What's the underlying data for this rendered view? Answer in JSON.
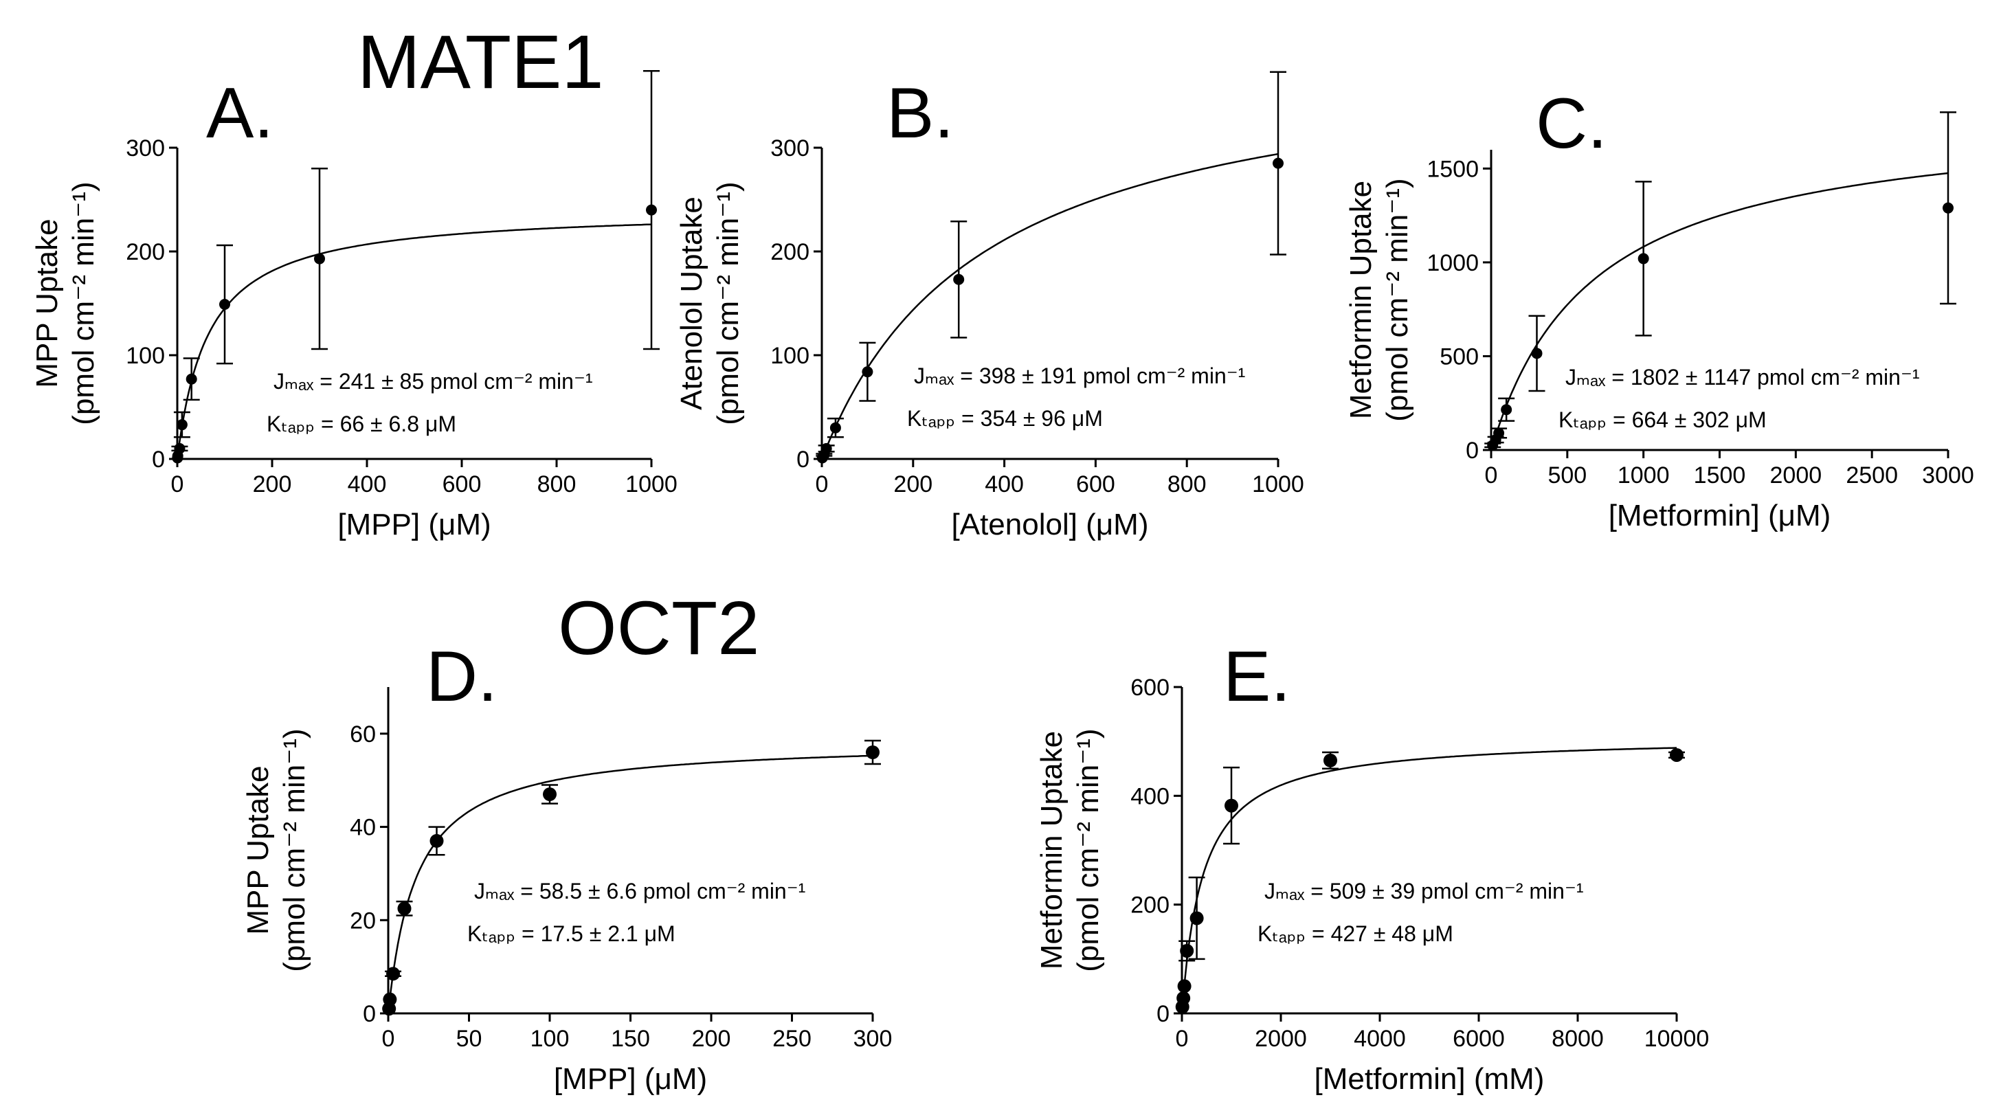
{
  "headings": {
    "top": "MATE1",
    "bottom": "OCT2"
  },
  "chart_data": [
    {
      "id": "A",
      "type": "scatter",
      "panel_label": "A.",
      "xlabel": "[MPP] (μM)",
      "ylabel_line1": "MPP Uptake",
      "ylabel_line2": "(pmol cm⁻² min⁻¹)",
      "xlim": [
        0,
        1000
      ],
      "ylim": [
        0,
        300
      ],
      "xticks": [
        0,
        200,
        400,
        600,
        800,
        1000
      ],
      "yticks": [
        0,
        100,
        200,
        300
      ],
      "grid": false,
      "points": [
        {
          "x": 0.5,
          "y": 1,
          "err": 0
        },
        {
          "x": 1,
          "y": 3,
          "err": 0
        },
        {
          "x": 5,
          "y": 10,
          "err": 2
        },
        {
          "x": 10,
          "y": 33,
          "err": 12
        },
        {
          "x": 30,
          "y": 77,
          "err": 20
        },
        {
          "x": 100,
          "y": 149,
          "err": 57
        },
        {
          "x": 300,
          "y": 193,
          "err": 87
        },
        {
          "x": 1000,
          "y": 240,
          "err": 134
        }
      ],
      "fit": {
        "vmax": 241,
        "km": 66
      },
      "annotation_line1": "Jₘₐₓ = 241 ± 85 pmol cm⁻² min⁻¹",
      "annotation_line2": "Kₜₐₚₚ = 66 ± 6.8 μM"
    },
    {
      "id": "B",
      "type": "scatter",
      "panel_label": "B.",
      "xlabel": "[Atenolol] (μM)",
      "ylabel_line1": "Atenolol Uptake",
      "ylabel_line2": "(pmol cm⁻² min⁻¹)",
      "xlim": [
        0,
        1000
      ],
      "ylim": [
        0,
        300
      ],
      "xticks": [
        0,
        200,
        400,
        600,
        800,
        1000
      ],
      "yticks": [
        0,
        100,
        200,
        300
      ],
      "grid": false,
      "points": [
        {
          "x": 1,
          "y": 1,
          "err": 0
        },
        {
          "x": 5,
          "y": 4,
          "err": 1
        },
        {
          "x": 10,
          "y": 10,
          "err": 3
        },
        {
          "x": 30,
          "y": 30,
          "err": 9
        },
        {
          "x": 100,
          "y": 84,
          "err": 28
        },
        {
          "x": 300,
          "y": 173,
          "err": 56
        },
        {
          "x": 1000,
          "y": 285,
          "err": 88
        }
      ],
      "fit": {
        "vmax": 398,
        "km": 354
      },
      "annotation_line1": "Jₘₐₓ = 398 ± 191 pmol cm⁻² min⁻¹",
      "annotation_line2": "Kₜₐₚₚ = 354 ± 96 μM"
    },
    {
      "id": "C",
      "type": "scatter",
      "panel_label": "C.",
      "xlabel": "[Metformin] (μM)",
      "ylabel_line1": "Metformin Uptake",
      "ylabel_line2": "(pmol cm⁻² min⁻¹)",
      "xlim": [
        0,
        3000
      ],
      "ylim": [
        0,
        1600
      ],
      "xticks": [
        0,
        500,
        1000,
        1500,
        2000,
        2500,
        3000
      ],
      "yticks": [
        0,
        500,
        1000,
        1500
      ],
      "grid": false,
      "points": [
        {
          "x": 10,
          "y": 25,
          "err": 10
        },
        {
          "x": 30,
          "y": 55,
          "err": 15
        },
        {
          "x": 50,
          "y": 90,
          "err": 25
        },
        {
          "x": 100,
          "y": 215,
          "err": 60
        },
        {
          "x": 300,
          "y": 515,
          "err": 200
        },
        {
          "x": 1000,
          "y": 1020,
          "err": 410
        },
        {
          "x": 3000,
          "y": 1290,
          "err": 510
        }
      ],
      "fit": {
        "vmax": 1802,
        "km": 664
      },
      "annotation_line1": "Jₘₐₓ = 1802 ± 1147 pmol cm⁻² min⁻¹",
      "annotation_line2": "Kₜₐₚₚ = 664 ± 302 μM"
    },
    {
      "id": "D",
      "type": "scatter",
      "panel_label": "D.",
      "xlabel": "[MPP] (μM)",
      "ylabel_line1": "MPP Uptake",
      "ylabel_line2": "(pmol cm⁻² min⁻¹)",
      "xlim": [
        0,
        300
      ],
      "ylim": [
        0,
        70
      ],
      "xticks": [
        0,
        50,
        100,
        150,
        200,
        250,
        300
      ],
      "yticks": [
        0,
        20,
        40,
        60
      ],
      "grid": false,
      "points": [
        {
          "x": 0.5,
          "y": 1,
          "err": 0
        },
        {
          "x": 1,
          "y": 3,
          "err": 0
        },
        {
          "x": 3,
          "y": 8.5,
          "err": 0.5
        },
        {
          "x": 10,
          "y": 22.5,
          "err": 1.5
        },
        {
          "x": 30,
          "y": 37,
          "err": 3
        },
        {
          "x": 100,
          "y": 47,
          "err": 2
        },
        {
          "x": 300,
          "y": 56,
          "err": 2.5
        }
      ],
      "fit": {
        "vmax": 58.5,
        "km": 17.5
      },
      "annotation_line1": "Jₘₐₓ = 58.5 ± 6.6 pmol cm⁻² min⁻¹",
      "annotation_line2": "Kₜₐₚₚ = 17.5 ± 2.1 μM"
    },
    {
      "id": "E",
      "type": "scatter",
      "panel_label": "E.",
      "xlabel": "[Metformin] (mM)",
      "ylabel_line1": "Metformin Uptake",
      "ylabel_line2": "(pmol cm⁻² min⁻¹)",
      "xlim": [
        0,
        10000
      ],
      "ylim": [
        0,
        600
      ],
      "xticks": [
        0,
        2000,
        4000,
        6000,
        8000,
        10000
      ],
      "yticks": [
        0,
        200,
        400,
        600
      ],
      "grid": false,
      "points": [
        {
          "x": 10,
          "y": 12,
          "err": 0
        },
        {
          "x": 30,
          "y": 28,
          "err": 0
        },
        {
          "x": 50,
          "y": 50,
          "err": 0
        },
        {
          "x": 100,
          "y": 115,
          "err": 18
        },
        {
          "x": 300,
          "y": 175,
          "err": 75
        },
        {
          "x": 1000,
          "y": 382,
          "err": 70
        },
        {
          "x": 3000,
          "y": 465,
          "err": 15
        },
        {
          "x": 10000,
          "y": 475,
          "err": 5
        }
      ],
      "fit": {
        "vmax": 509,
        "km": 427
      },
      "annotation_line1": "Jₘₐₓ = 509 ± 39 pmol cm⁻² min⁻¹",
      "annotation_line2": "Kₜₐₚₚ = 427 ± 48 μM"
    }
  ]
}
